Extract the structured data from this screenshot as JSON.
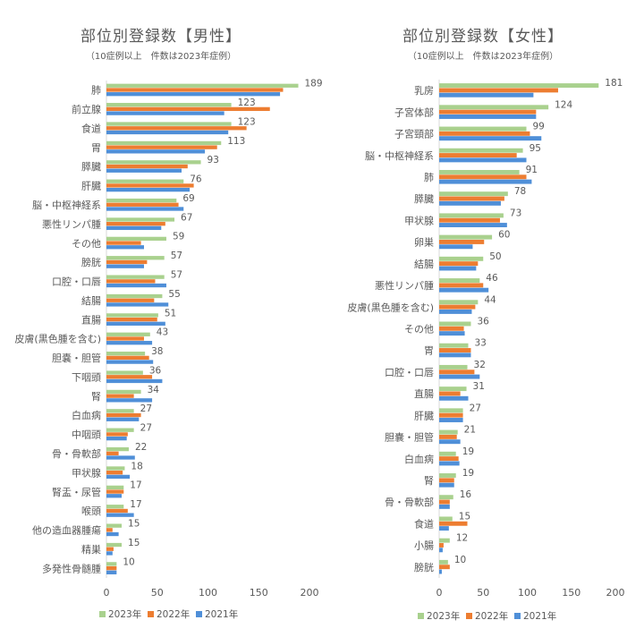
{
  "colors": {
    "y2023": "#a9d18e",
    "y2022": "#ed7d31",
    "y2021": "#4f8fd8",
    "axis": "#d9d9d9",
    "text": "#595959"
  },
  "chart_data": [
    {
      "type": "bar",
      "orientation": "horizontal",
      "title": "部位別登録数【男性】",
      "subtitle": "（10症例以上　件数は2023年症例）",
      "categories": [
        "肺",
        "前立腺",
        "食道",
        "胃",
        "膵臓",
        "肝臓",
        "脳・中枢神経系",
        "悪性リンパ腫",
        "その他",
        "膀胱",
        "口腔・口唇",
        "結腸",
        "直腸",
        "皮膚(黒色腫を含む)",
        "胆嚢・胆管",
        "下咽頭",
        "腎",
        "白血病",
        "中咽頭",
        "骨・骨軟部",
        "甲状腺",
        "腎盂・尿管",
        "喉頭",
        "他の造血器腫瘍",
        "精巣",
        "多発性骨髄腫"
      ],
      "series": [
        {
          "name": "2023年",
          "values": [
            189,
            123,
            123,
            113,
            93,
            76,
            69,
            67,
            59,
            57,
            57,
            55,
            51,
            43,
            38,
            36,
            34,
            27,
            27,
            22,
            18,
            17,
            17,
            15,
            15,
            10
          ]
        },
        {
          "name": "2022年",
          "values": [
            174,
            161,
            138,
            109,
            80,
            86,
            71,
            58,
            34,
            40,
            48,
            47,
            50,
            37,
            42,
            45,
            27,
            34,
            21,
            12,
            16,
            17,
            21,
            6,
            7,
            10
          ]
        },
        {
          "name": "2021年",
          "values": [
            171,
            116,
            120,
            97,
            74,
            82,
            76,
            54,
            37,
            37,
            59,
            61,
            58,
            45,
            46,
            55,
            45,
            32,
            20,
            28,
            23,
            15,
            27,
            12,
            6,
            10
          ]
        }
      ],
      "data_labels": [
        "189",
        "123",
        "123",
        "113",
        "93",
        "76",
        "69",
        "67",
        "59",
        "57",
        "57",
        "55",
        "51",
        "43",
        "38",
        "36",
        "34",
        "27",
        "27",
        "22",
        "18",
        "17",
        "17",
        "15",
        "15",
        "10"
      ],
      "xlim": [
        0,
        200
      ],
      "xticks": [
        "0",
        "50",
        "100",
        "150",
        "200"
      ],
      "legend_position": "bottom"
    },
    {
      "type": "bar",
      "orientation": "horizontal",
      "title": "部位別登録数【女性】",
      "subtitle": "（10症例以上　件数は2023年症例）",
      "categories": [
        "乳房",
        "子宮体部",
        "子宮頸部",
        "脳・中枢神経系",
        "肺",
        "膵臓",
        "甲状腺",
        "卵巣",
        "結腸",
        "悪性リンパ腫",
        "皮膚(黒色腫を含む)",
        "その他",
        "胃",
        "口腔・口唇",
        "直腸",
        "肝臓",
        "胆嚢・胆管",
        "白血病",
        "腎",
        "骨・骨軟部",
        "食道",
        "小腸",
        "膀胱"
      ],
      "series": [
        {
          "name": "2023年",
          "values": [
            181,
            124,
            99,
            95,
            91,
            78,
            73,
            60,
            50,
            46,
            44,
            36,
            33,
            32,
            31,
            27,
            21,
            19,
            19,
            16,
            15,
            12,
            10
          ]
        },
        {
          "name": "2022年",
          "values": [
            135,
            110,
            103,
            88,
            99,
            74,
            69,
            51,
            44,
            50,
            41,
            28,
            36,
            40,
            24,
            27,
            20,
            22,
            17,
            12,
            32,
            5,
            12
          ]
        },
        {
          "name": "2021年",
          "values": [
            107,
            110,
            116,
            99,
            105,
            70,
            77,
            38,
            42,
            56,
            37,
            29,
            36,
            46,
            33,
            27,
            24,
            23,
            17,
            12,
            11,
            4,
            3
          ]
        }
      ],
      "data_labels": [
        "181",
        "124",
        "99",
        "95",
        "91",
        "78",
        "73",
        "60",
        "50",
        "46",
        "44",
        "36",
        "33",
        "32",
        "31",
        "27",
        "21",
        "19",
        "19",
        "16",
        "15",
        "12",
        "10"
      ],
      "xlim": [
        0,
        200
      ],
      "xticks": [
        "0",
        "50",
        "100",
        "150",
        "200"
      ],
      "legend_position": "bottom"
    }
  ]
}
